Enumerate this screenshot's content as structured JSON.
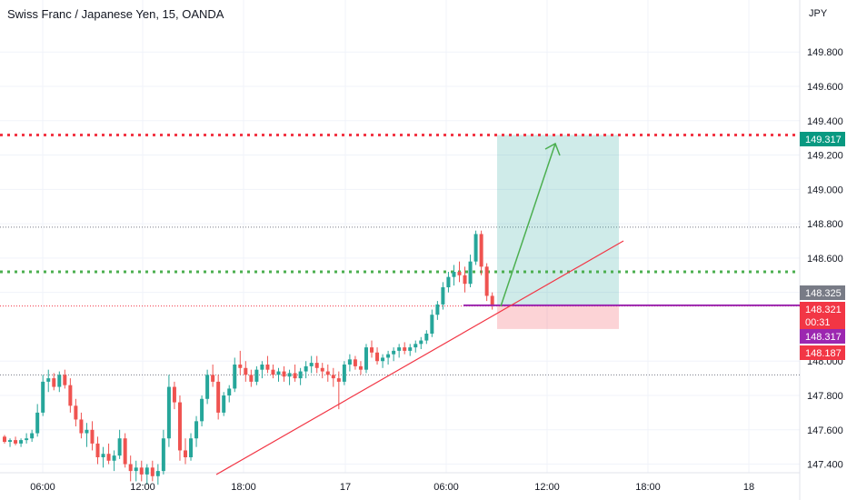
{
  "header": {
    "title": "Swiss Franc / Japanese Yen, 15, OANDA",
    "currency": "JPY"
  },
  "chart_data": {
    "type": "candlestick",
    "symbol": "Swiss Franc / Japanese Yen",
    "interval": "15",
    "source": "OANDA",
    "y_axis_unit": "JPY",
    "ylim": [
      147.35,
      150.05
    ],
    "y_ticks": [
      "149.800",
      "149.600",
      "149.400",
      "149.200",
      "149.000",
      "148.800",
      "148.600",
      "148.400",
      "148.000",
      "147.800",
      "147.600",
      "147.400"
    ],
    "x_ticks": [
      "06:00",
      "12:00",
      "18:00",
      "17",
      "06:00",
      "12:00",
      "18:00",
      "18"
    ],
    "grid": true,
    "colors": {
      "up": "#26a69a",
      "down": "#ef5350",
      "trendline": "#f23645",
      "arrow": "#4caf50",
      "magenta": "#9c27b0"
    },
    "candles": [
      [
        147.56,
        147.57,
        147.52,
        147.53
      ],
      [
        147.53,
        147.55,
        147.5,
        147.54
      ],
      [
        147.54,
        147.56,
        147.51,
        147.52
      ],
      [
        147.52,
        147.55,
        147.5,
        147.54
      ],
      [
        147.54,
        147.58,
        147.52,
        147.55
      ],
      [
        147.55,
        147.6,
        147.53,
        147.58
      ],
      [
        147.58,
        147.75,
        147.56,
        147.7
      ],
      [
        147.7,
        147.92,
        147.68,
        147.88
      ],
      [
        147.88,
        147.95,
        147.82,
        147.9
      ],
      [
        147.9,
        147.93,
        147.83,
        147.85
      ],
      [
        147.85,
        147.94,
        147.82,
        147.92
      ],
      [
        147.92,
        147.95,
        147.84,
        147.86
      ],
      [
        147.86,
        147.9,
        147.7,
        147.74
      ],
      [
        147.74,
        147.78,
        147.62,
        147.66
      ],
      [
        147.66,
        147.7,
        147.55,
        147.58
      ],
      [
        147.58,
        147.64,
        147.5,
        147.6
      ],
      [
        147.6,
        147.65,
        147.48,
        147.52
      ],
      [
        147.52,
        147.56,
        147.4,
        147.44
      ],
      [
        147.44,
        147.5,
        147.38,
        147.46
      ],
      [
        147.46,
        147.52,
        147.4,
        147.42
      ],
      [
        147.42,
        147.48,
        147.36,
        147.45
      ],
      [
        147.45,
        147.6,
        147.43,
        147.55
      ],
      [
        147.55,
        147.58,
        147.38,
        147.4
      ],
      [
        147.4,
        147.45,
        147.3,
        147.36
      ],
      [
        147.36,
        147.42,
        147.3,
        147.38
      ],
      [
        147.38,
        147.42,
        147.3,
        147.34
      ],
      [
        147.34,
        147.4,
        147.28,
        147.38
      ],
      [
        147.38,
        147.42,
        147.3,
        147.33
      ],
      [
        147.33,
        147.4,
        147.28,
        147.36
      ],
      [
        147.36,
        147.6,
        147.34,
        147.55
      ],
      [
        147.55,
        147.92,
        147.5,
        147.85
      ],
      [
        147.85,
        147.88,
        147.72,
        147.76
      ],
      [
        147.76,
        147.8,
        147.42,
        147.48
      ],
      [
        147.48,
        147.55,
        147.4,
        147.44
      ],
      [
        147.44,
        147.58,
        147.42,
        147.55
      ],
      [
        147.55,
        147.68,
        147.5,
        147.65
      ],
      [
        147.65,
        147.8,
        147.62,
        147.78
      ],
      [
        147.78,
        147.95,
        147.75,
        147.92
      ],
      [
        147.92,
        147.98,
        147.85,
        147.88
      ],
      [
        147.88,
        147.92,
        147.66,
        147.7
      ],
      [
        147.7,
        147.82,
        147.68,
        147.8
      ],
      [
        147.8,
        147.86,
        147.76,
        147.84
      ],
      [
        147.84,
        148.02,
        147.82,
        147.98
      ],
      [
        147.98,
        148.06,
        147.92,
        147.96
      ],
      [
        147.96,
        148.0,
        147.88,
        147.92
      ],
      [
        147.92,
        147.95,
        147.85,
        147.88
      ],
      [
        147.88,
        147.97,
        147.86,
        147.95
      ],
      [
        147.95,
        148.0,
        147.9,
        147.98
      ],
      [
        147.98,
        148.03,
        147.93,
        147.95
      ],
      [
        147.95,
        147.98,
        147.9,
        147.92
      ],
      [
        147.92,
        147.96,
        147.88,
        147.94
      ],
      [
        147.94,
        147.97,
        147.88,
        147.91
      ],
      [
        147.91,
        147.95,
        147.86,
        147.93
      ],
      [
        147.93,
        147.98,
        147.88,
        147.9
      ],
      [
        147.9,
        147.96,
        147.86,
        147.94
      ],
      [
        147.94,
        148.0,
        147.9,
        147.97
      ],
      [
        147.97,
        148.03,
        147.93,
        147.99
      ],
      [
        147.99,
        148.03,
        147.93,
        147.96
      ],
      [
        147.96,
        147.99,
        147.9,
        147.94
      ],
      [
        147.94,
        147.98,
        147.88,
        147.92
      ],
      [
        147.92,
        147.96,
        147.85,
        147.9
      ],
      [
        147.9,
        147.94,
        147.72,
        147.88
      ],
      [
        147.88,
        148.0,
        147.86,
        147.98
      ],
      [
        147.98,
        148.04,
        147.94,
        148.01
      ],
      [
        148.01,
        148.03,
        147.95,
        147.97
      ],
      [
        147.97,
        148.0,
        147.92,
        147.95
      ],
      [
        147.95,
        148.1,
        147.93,
        148.08
      ],
      [
        148.08,
        148.12,
        148.02,
        148.05
      ],
      [
        148.05,
        148.08,
        147.98,
        148.0
      ],
      [
        148.0,
        148.04,
        147.96,
        148.02
      ],
      [
        148.02,
        148.06,
        147.98,
        148.04
      ],
      [
        148.04,
        148.08,
        148.0,
        148.06
      ],
      [
        148.06,
        148.1,
        148.02,
        148.08
      ],
      [
        148.08,
        148.11,
        148.04,
        148.06
      ],
      [
        148.06,
        148.1,
        148.03,
        148.08
      ],
      [
        148.08,
        148.12,
        148.05,
        148.1
      ],
      [
        148.1,
        148.14,
        148.07,
        148.12
      ],
      [
        148.12,
        148.18,
        148.1,
        148.16
      ],
      [
        148.16,
        148.3,
        148.14,
        148.27
      ],
      [
        148.27,
        148.35,
        148.24,
        148.33
      ],
      [
        148.33,
        148.46,
        148.3,
        148.43
      ],
      [
        148.43,
        148.52,
        148.4,
        148.49
      ],
      [
        148.49,
        148.56,
        148.44,
        148.52
      ],
      [
        148.52,
        148.58,
        148.46,
        148.5
      ],
      [
        148.5,
        148.55,
        148.4,
        148.45
      ],
      [
        148.45,
        148.62,
        148.43,
        148.58
      ],
      [
        148.58,
        148.76,
        148.56,
        148.74
      ],
      [
        148.74,
        148.76,
        148.5,
        148.55
      ],
      [
        148.55,
        148.57,
        148.35,
        148.38
      ],
      [
        148.38,
        148.4,
        148.3,
        148.32
      ]
    ],
    "annotations": {
      "upper_dotted_level": 149.317,
      "middle_dotted_level": 148.52,
      "thin_dotted_levels": [
        148.78,
        148.321,
        147.92
      ],
      "entry_level": 148.325,
      "stop_level": 148.187,
      "target_level": 149.317
    },
    "price_badges": [
      {
        "label": "149.317",
        "value": 149.317,
        "color": "#089981"
      },
      {
        "label": "148.325",
        "value": 148.325,
        "color": "#787b86"
      },
      {
        "label": "148.321",
        "value": 148.321,
        "color": "#f23645"
      },
      {
        "label": "00:31",
        "value": 148.321,
        "color": "#f23645"
      },
      {
        "label": "148.317",
        "value": 148.317,
        "color": "#9c27b0"
      },
      {
        "label": "148.187",
        "value": 148.187,
        "color": "#f23645"
      }
    ]
  }
}
